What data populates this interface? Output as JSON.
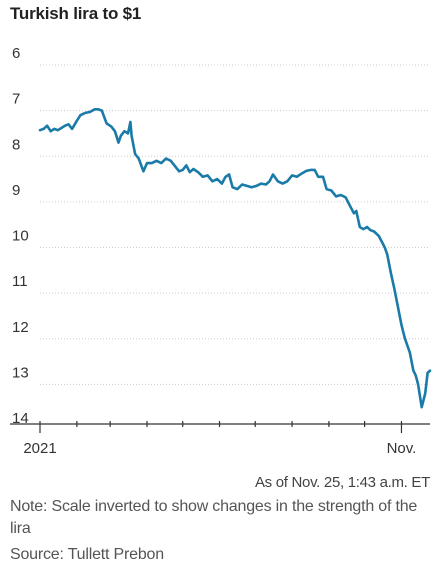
{
  "chart_data": {
    "type": "line",
    "title": "Turkish lira to $1",
    "xlabel": "",
    "ylabel": "",
    "y_inverted": true,
    "ylim": [
      6,
      14
    ],
    "yticks": [
      6,
      7,
      8,
      9,
      10,
      11,
      12,
      13,
      14
    ],
    "xticks": [
      {
        "x": "2021-01-01",
        "label": "2021"
      },
      {
        "x": "2021-02-01",
        "label": ""
      },
      {
        "x": "2021-03-01",
        "label": ""
      },
      {
        "x": "2021-04-01",
        "label": ""
      },
      {
        "x": "2021-05-01",
        "label": ""
      },
      {
        "x": "2021-06-01",
        "label": ""
      },
      {
        "x": "2021-07-01",
        "label": ""
      },
      {
        "x": "2021-08-01",
        "label": ""
      },
      {
        "x": "2021-09-01",
        "label": ""
      },
      {
        "x": "2021-10-01",
        "label": ""
      },
      {
        "x": "2021-11-01",
        "label": "Nov."
      }
    ],
    "xlim": [
      "2021-01-01",
      "2021-11-25"
    ],
    "grid": true,
    "line_color": "#1a7aa8",
    "series": [
      {
        "name": "",
        "points": [
          [
            "2021-01-01",
            7.43
          ],
          [
            "2021-01-04",
            7.4
          ],
          [
            "2021-01-07",
            7.33
          ],
          [
            "2021-01-10",
            7.45
          ],
          [
            "2021-01-13",
            7.4
          ],
          [
            "2021-01-16",
            7.43
          ],
          [
            "2021-01-19",
            7.38
          ],
          [
            "2021-01-22",
            7.33
          ],
          [
            "2021-01-25",
            7.3
          ],
          [
            "2021-01-28",
            7.4
          ],
          [
            "2021-02-01",
            7.22
          ],
          [
            "2021-02-04",
            7.1
          ],
          [
            "2021-02-08",
            7.05
          ],
          [
            "2021-02-12",
            7.03
          ],
          [
            "2021-02-16",
            6.97
          ],
          [
            "2021-02-19",
            6.97
          ],
          [
            "2021-02-22",
            7.0
          ],
          [
            "2021-02-26",
            7.28
          ],
          [
            "2021-03-02",
            7.35
          ],
          [
            "2021-03-05",
            7.45
          ],
          [
            "2021-03-08",
            7.7
          ],
          [
            "2021-03-10",
            7.55
          ],
          [
            "2021-03-13",
            7.45
          ],
          [
            "2021-03-16",
            7.5
          ],
          [
            "2021-03-18",
            7.25
          ],
          [
            "2021-03-19",
            7.55
          ],
          [
            "2021-03-22",
            7.95
          ],
          [
            "2021-03-25",
            8.05
          ],
          [
            "2021-03-29",
            8.33
          ],
          [
            "2021-04-01",
            8.15
          ],
          [
            "2021-04-05",
            8.15
          ],
          [
            "2021-04-09",
            8.1
          ],
          [
            "2021-04-13",
            8.15
          ],
          [
            "2021-04-17",
            8.05
          ],
          [
            "2021-04-21",
            8.1
          ],
          [
            "2021-04-24",
            8.2
          ],
          [
            "2021-04-28",
            8.33
          ],
          [
            "2021-05-01",
            8.3
          ],
          [
            "2021-05-04",
            8.2
          ],
          [
            "2021-05-07",
            8.35
          ],
          [
            "2021-05-10",
            8.28
          ],
          [
            "2021-05-14",
            8.35
          ],
          [
            "2021-05-18",
            8.45
          ],
          [
            "2021-05-22",
            8.42
          ],
          [
            "2021-05-26",
            8.55
          ],
          [
            "2021-05-30",
            8.5
          ],
          [
            "2021-06-03",
            8.6
          ],
          [
            "2021-06-06",
            8.45
          ],
          [
            "2021-06-09",
            8.4
          ],
          [
            "2021-06-12",
            8.68
          ],
          [
            "2021-06-16",
            8.72
          ],
          [
            "2021-06-20",
            8.62
          ],
          [
            "2021-06-24",
            8.65
          ],
          [
            "2021-06-28",
            8.68
          ],
          [
            "2021-07-02",
            8.65
          ],
          [
            "2021-07-06",
            8.6
          ],
          [
            "2021-07-10",
            8.62
          ],
          [
            "2021-07-13",
            8.55
          ],
          [
            "2021-07-16",
            8.4
          ],
          [
            "2021-07-20",
            8.55
          ],
          [
            "2021-07-24",
            8.6
          ],
          [
            "2021-07-28",
            8.55
          ],
          [
            "2021-08-01",
            8.42
          ],
          [
            "2021-08-05",
            8.45
          ],
          [
            "2021-08-09",
            8.38
          ],
          [
            "2021-08-13",
            8.32
          ],
          [
            "2021-08-17",
            8.3
          ],
          [
            "2021-08-20",
            8.3
          ],
          [
            "2021-08-23",
            8.45
          ],
          [
            "2021-08-27",
            8.45
          ],
          [
            "2021-08-30",
            8.72
          ],
          [
            "2021-09-03",
            8.75
          ],
          [
            "2021-09-07",
            8.88
          ],
          [
            "2021-09-11",
            8.85
          ],
          [
            "2021-09-15",
            8.9
          ],
          [
            "2021-09-18",
            9.05
          ],
          [
            "2021-09-22",
            9.25
          ],
          [
            "2021-09-24",
            9.2
          ],
          [
            "2021-09-27",
            9.55
          ],
          [
            "2021-09-30",
            9.6
          ],
          [
            "2021-10-03",
            9.55
          ],
          [
            "2021-10-06",
            9.62
          ],
          [
            "2021-10-09",
            9.65
          ],
          [
            "2021-10-13",
            9.75
          ],
          [
            "2021-10-16",
            9.9
          ],
          [
            "2021-10-18",
            10.0
          ],
          [
            "2021-10-20",
            10.15
          ],
          [
            "2021-10-23",
            10.55
          ],
          [
            "2021-10-26",
            10.9
          ],
          [
            "2021-10-29",
            11.3
          ],
          [
            "2021-11-01",
            11.7
          ],
          [
            "2021-11-04",
            12.0
          ],
          [
            "2021-11-08",
            12.3
          ],
          [
            "2021-11-11",
            12.7
          ],
          [
            "2021-11-13",
            12.8
          ],
          [
            "2021-11-15",
            13.0
          ],
          [
            "2021-11-18",
            13.5
          ],
          [
            "2021-11-21",
            13.2
          ],
          [
            "2021-11-23",
            12.75
          ],
          [
            "2021-11-25",
            12.7
          ]
        ]
      }
    ]
  },
  "footer": {
    "as_of": "As of Nov. 25, 1:43 a.m. ET",
    "note": "Note: Scale inverted to show changes in the strength of the lira",
    "source": "Source: Tullett Prebon"
  }
}
